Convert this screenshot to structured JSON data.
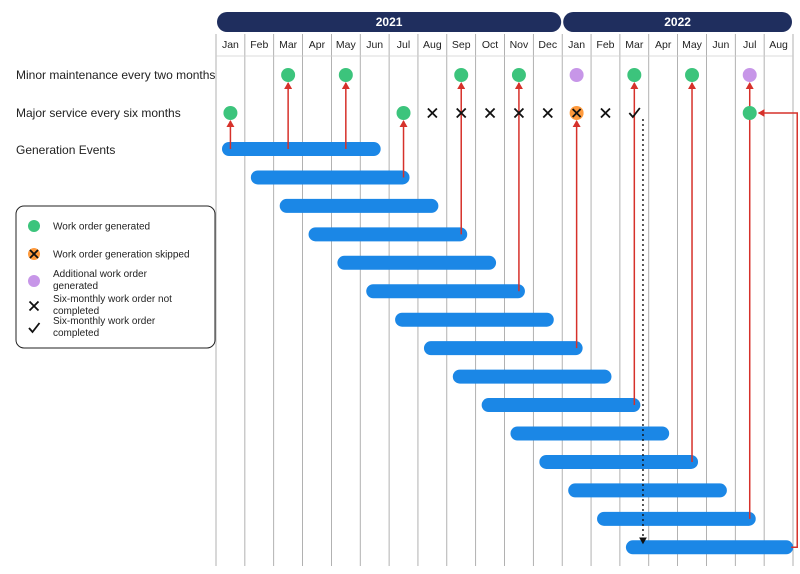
{
  "title": "",
  "years": [
    {
      "label": "2021",
      "start": 0,
      "end": 12
    },
    {
      "label": "2022",
      "start": 12,
      "end": 20
    }
  ],
  "months": [
    "Jan",
    "Feb",
    "Mar",
    "Apr",
    "May",
    "Jun",
    "Jul",
    "Aug",
    "Sep",
    "Oct",
    "Nov",
    "Dec",
    "Jan",
    "Feb",
    "Mar",
    "Apr",
    "May",
    "Jun",
    "Jul",
    "Aug"
  ],
  "rows": {
    "minor": "Minor maintenance every two months",
    "major": "Major service every six months",
    "events": "Generation Events"
  },
  "colors": {
    "generated": "#3cc47c",
    "skipped": "#ff9a3c",
    "additional": "#c796e8",
    "bar": "#1b87e6",
    "arrow": "#d6312a",
    "header": "#1f2e5e",
    "grid": "#9e9e9e"
  },
  "markers": {
    "minor": [
      {
        "month": 2,
        "kind": "generated"
      },
      {
        "month": 4,
        "kind": "generated"
      },
      {
        "month": 8,
        "kind": "generated"
      },
      {
        "month": 10,
        "kind": "generated"
      },
      {
        "month": 12,
        "kind": "additional"
      },
      {
        "month": 14,
        "kind": "generated"
      },
      {
        "month": 16,
        "kind": "generated"
      },
      {
        "month": 18,
        "kind": "additional"
      }
    ],
    "major": [
      {
        "month": 0,
        "kind": "generated"
      },
      {
        "month": 6,
        "kind": "generated"
      },
      {
        "month": 7,
        "kind": "not_completed"
      },
      {
        "month": 8,
        "kind": "not_completed"
      },
      {
        "month": 9,
        "kind": "not_completed"
      },
      {
        "month": 10,
        "kind": "not_completed"
      },
      {
        "month": 11,
        "kind": "not_completed"
      },
      {
        "month": 12,
        "kind": "skipped"
      },
      {
        "month": 13,
        "kind": "not_completed"
      },
      {
        "month": 14,
        "kind": "completed"
      },
      {
        "month": 18,
        "kind": "generated"
      }
    ]
  },
  "events": [
    {
      "start": 0,
      "end": 5.5,
      "arrows": [
        {
          "to": "major",
          "month": 0
        },
        {
          "to": "minor",
          "month": 2
        },
        {
          "to": "minor",
          "month": 4
        }
      ]
    },
    {
      "start": 1,
      "end": 6.5,
      "arrows": [
        {
          "to": "major",
          "month": 6
        }
      ]
    },
    {
      "start": 2,
      "end": 7.5,
      "arrows": []
    },
    {
      "start": 3,
      "end": 8.5,
      "arrows": [
        {
          "to": "minor",
          "month": 8
        }
      ]
    },
    {
      "start": 4,
      "end": 9.5,
      "arrows": []
    },
    {
      "start": 5,
      "end": 10.5,
      "arrows": [
        {
          "to": "minor",
          "month": 10
        }
      ]
    },
    {
      "start": 6,
      "end": 11.5,
      "arrows": []
    },
    {
      "start": 7,
      "end": 12.5,
      "arrows": [
        {
          "to": "major",
          "month": 12
        }
      ]
    },
    {
      "start": 8,
      "end": 13.5,
      "arrows": []
    },
    {
      "start": 9,
      "end": 14.5,
      "arrows": [
        {
          "to": "minor",
          "month": 14
        }
      ]
    },
    {
      "start": 10,
      "end": 15.5,
      "arrows": []
    },
    {
      "start": 11,
      "end": 16.5,
      "arrows": [
        {
          "to": "minor",
          "month": 16
        }
      ]
    },
    {
      "start": 12,
      "end": 17.5,
      "arrows": []
    },
    {
      "start": 13,
      "end": 18.5,
      "arrows": [
        {
          "to": "minor",
          "month": 18
        }
      ]
    },
    {
      "start": 14,
      "end": 19.8,
      "arrows": [
        {
          "to": "major",
          "month": 18,
          "routed": true
        }
      ]
    }
  ],
  "dotted_link": {
    "month": 14.3,
    "from_row": "major",
    "to_event": 14
  },
  "legend": [
    {
      "kind": "generated",
      "label": "Work order generated"
    },
    {
      "kind": "skipped",
      "label": "Work order generation skipped"
    },
    {
      "kind": "additional",
      "label": "Additional work order generated"
    },
    {
      "kind": "not_completed",
      "label": "Six-monthly work order not completed"
    },
    {
      "kind": "completed",
      "label": "Six-monthly work order completed"
    }
  ]
}
